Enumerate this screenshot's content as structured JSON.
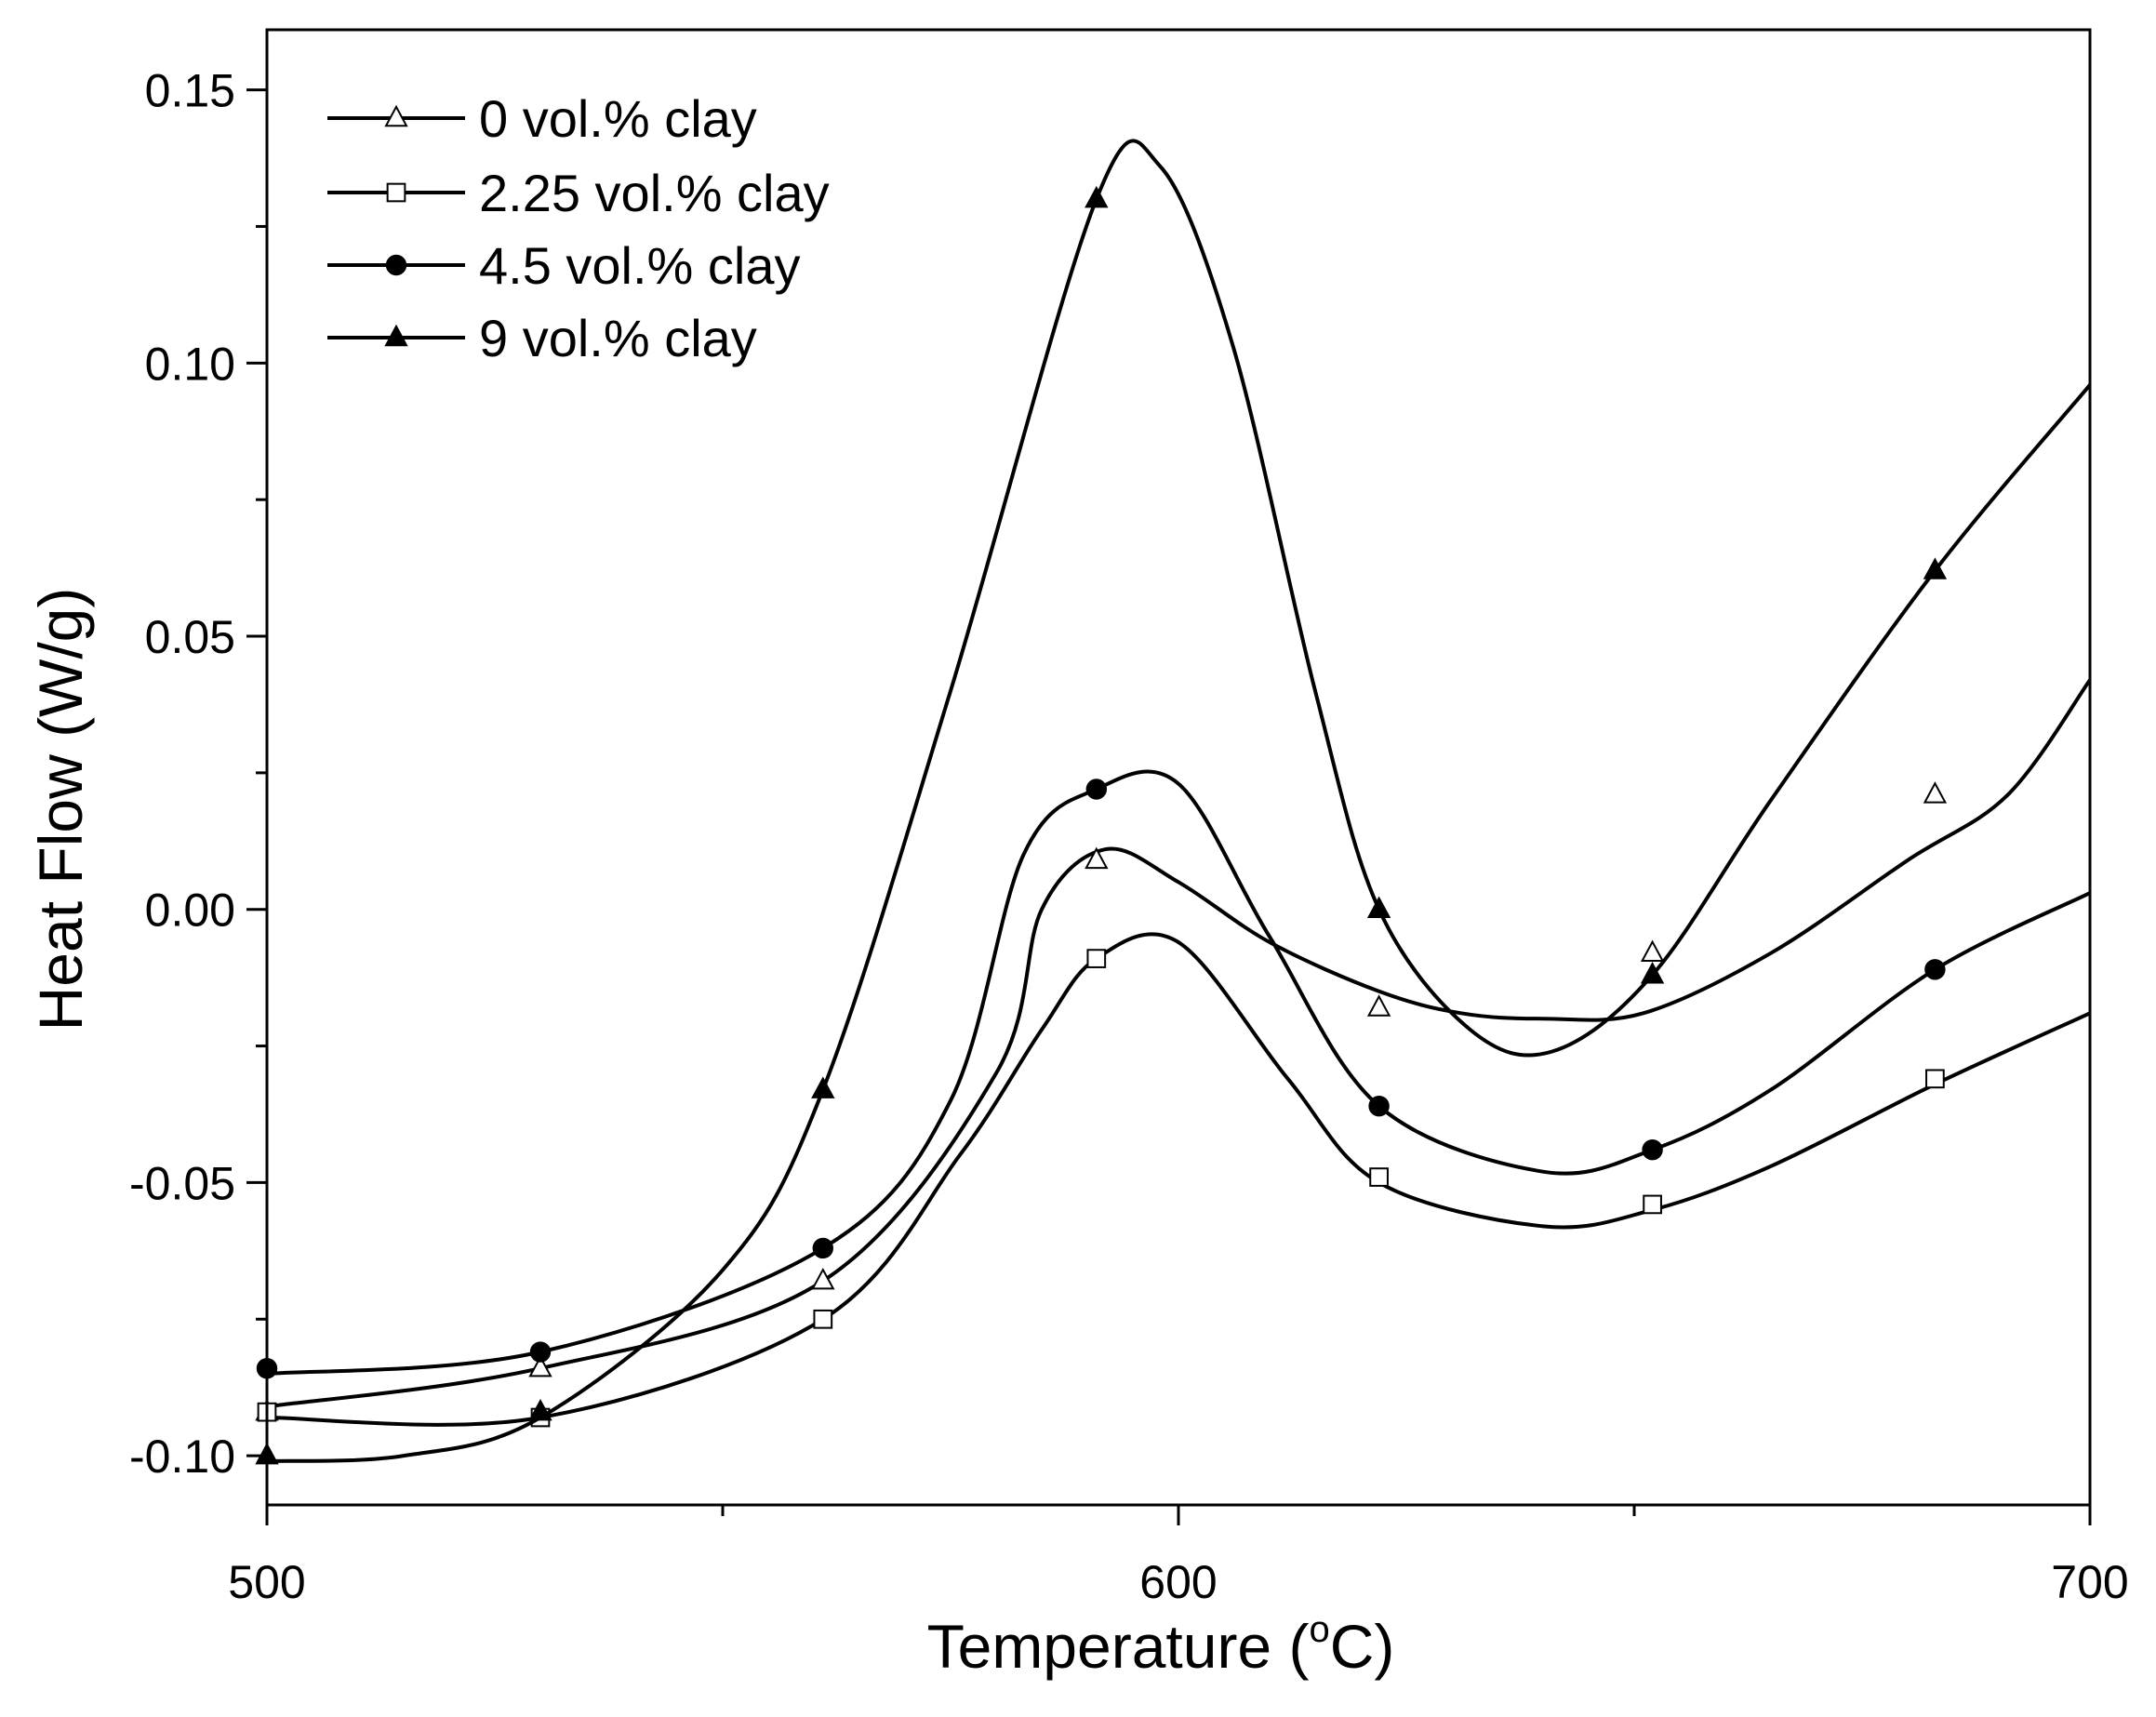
{
  "chart_data": {
    "type": "line",
    "title": "",
    "xlabel": "Temperature (",
    "xlabel_unit_sup": "o",
    "xlabel_unit": "C)",
    "ylabel": "Heat Flow (W/g)",
    "xlim": [
      500,
      700
    ],
    "ylim": [
      -0.109,
      0.161
    ],
    "x_ticks": [
      500,
      600,
      700
    ],
    "x_tick_labels": [
      "500",
      "600",
      "700"
    ],
    "x_minor_ticks": [
      550,
      650
    ],
    "y_ticks": [
      -0.1,
      -0.05,
      0.0,
      0.05,
      0.1,
      0.15
    ],
    "y_tick_labels": [
      "-0.10",
      "-0.05",
      "0.00",
      "0.05",
      "0.10",
      "0.15"
    ],
    "y_minor_ticks": [
      -0.075,
      -0.025,
      0.025,
      0.075,
      0.125
    ],
    "grid": false,
    "legend_position": "top-left",
    "series": [
      {
        "name": "0 vol.% clay",
        "marker": "open-triangle",
        "x": [
          500,
          530,
          561,
          580,
          585,
          592,
          600,
          610,
          622,
          631,
          640,
          651,
          665,
          680,
          691,
          700
        ],
        "y": [
          -0.091,
          -0.084,
          -0.068,
          -0.03,
          0.0,
          0.011,
          0.005,
          -0.006,
          -0.015,
          -0.019,
          -0.02,
          -0.019,
          -0.008,
          0.009,
          0.021,
          0.042
        ],
        "marker_x": [
          500,
          530,
          561,
          591,
          622,
          652,
          683
        ],
        "marker_y": [
          -0.092,
          -0.084,
          -0.068,
          0.009,
          -0.018,
          -0.008,
          0.021
        ]
      },
      {
        "name": "2.25 vol.% clay",
        "marker": "open-square",
        "x": [
          500,
          530,
          561,
          576,
          585,
          591,
          600,
          612,
          622,
          640,
          652,
          665,
          683,
          700
        ],
        "y": [
          -0.093,
          -0.093,
          -0.075,
          -0.045,
          -0.022,
          -0.009,
          -0.006,
          -0.031,
          -0.05,
          -0.058,
          -0.055,
          -0.047,
          -0.032,
          -0.019
        ],
        "marker_x": [
          500,
          530,
          561,
          591,
          622,
          652,
          683
        ],
        "marker_y": [
          -0.092,
          -0.093,
          -0.075,
          -0.009,
          -0.049,
          -0.054,
          -0.031
        ]
      },
      {
        "name": "4.5 vol.% clay",
        "marker": "filled-circle",
        "x": [
          500,
          530,
          561,
          575,
          583,
          591,
          600,
          610,
          622,
          640,
          652,
          665,
          683,
          700
        ],
        "y": [
          -0.085,
          -0.081,
          -0.062,
          -0.035,
          0.01,
          0.022,
          0.023,
          -0.005,
          -0.036,
          -0.048,
          -0.044,
          -0.033,
          -0.011,
          0.003
        ],
        "marker_x": [
          500,
          530,
          561,
          591,
          622,
          652,
          683
        ],
        "marker_y": [
          -0.084,
          -0.081,
          -0.062,
          0.022,
          -0.036,
          -0.044,
          -0.011
        ]
      },
      {
        "name": "9 vol.% clay",
        "marker": "filled-triangle",
        "x": [
          500,
          515,
          530,
          550,
          561,
          575,
          591,
          598,
          606,
          615,
          622,
          632,
          641,
          652,
          665,
          683,
          700
        ],
        "y": [
          -0.101,
          -0.1,
          -0.093,
          -0.066,
          -0.033,
          0.04,
          0.13,
          0.136,
          0.103,
          0.04,
          0.0,
          -0.022,
          -0.026,
          -0.012,
          0.02,
          0.062,
          0.096
        ],
        "marker_x": [
          500,
          530,
          561,
          591,
          622,
          652,
          683
        ],
        "marker_y": [
          -0.1,
          -0.092,
          -0.033,
          0.13,
          0.0,
          -0.012,
          0.062
        ]
      }
    ]
  }
}
